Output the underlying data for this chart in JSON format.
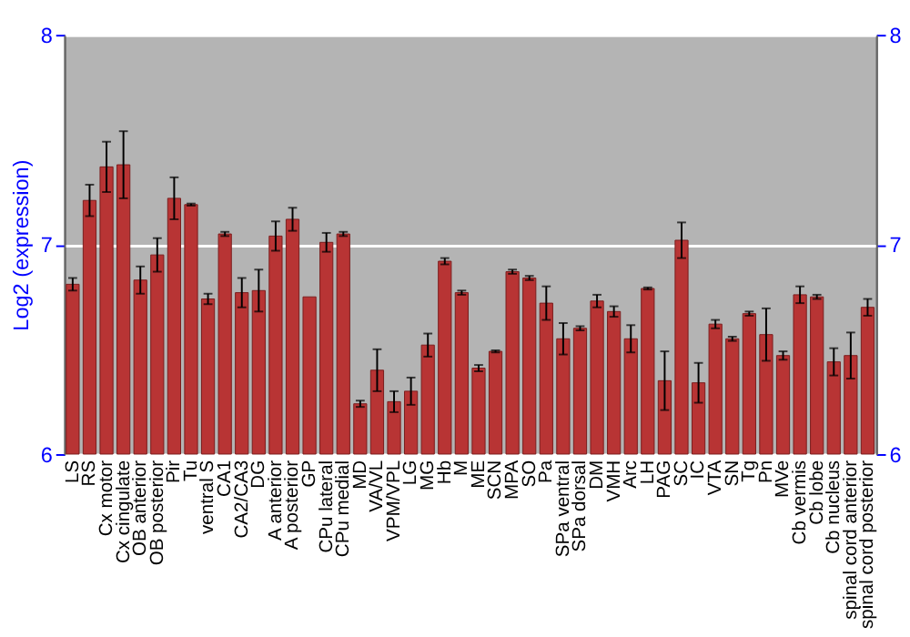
{
  "chart_data": {
    "type": "bar",
    "ylabel": "Log2 (expression)",
    "categories": [
      "LS",
      "RS",
      "Cx motor",
      "Cx cingulate",
      "OB anterior",
      "OB posterior",
      "Pir",
      "Tu",
      "ventral S",
      "CA1",
      "CA2/CA3",
      "DG",
      "A anterior",
      "A posterior",
      "GP",
      "CPu lateral",
      "CPu medial",
      "MD",
      "VA/VL",
      "VPM/VPL",
      "LG",
      "MG",
      "Hb",
      "M",
      "ME",
      "SCN",
      "MPA",
      "SO",
      "Pa",
      "SPa ventral",
      "SPa dorsal",
      "DM",
      "VMH",
      "Arc",
      "LH",
      "PAG",
      "SC",
      "IC",
      "VTA",
      "SN",
      "Tg",
      "Pn",
      "MVe",
      "Cb vermis",
      "Cb lobe",
      "Cb nucleus",
      "spinal cord anterior",
      "spinal cord posterior"
    ],
    "values": [
      6.81,
      7.21,
      7.37,
      7.38,
      6.83,
      6.95,
      7.22,
      7.19,
      6.74,
      7.05,
      6.77,
      6.78,
      7.04,
      7.12,
      6.75,
      7.01,
      7.05,
      6.24,
      6.4,
      6.25,
      6.3,
      6.52,
      6.92,
      6.77,
      6.41,
      6.49,
      6.87,
      6.84,
      6.72,
      6.55,
      6.6,
      6.73,
      6.68,
      6.55,
      6.79,
      6.35,
      7.02,
      6.34,
      6.62,
      6.55,
      6.67,
      6.57,
      6.47,
      6.76,
      6.75,
      6.44,
      6.47,
      6.7
    ],
    "errors": [
      0.03,
      0.075,
      0.12,
      0.16,
      0.065,
      0.08,
      0.1,
      0.005,
      0.025,
      0.01,
      0.07,
      0.1,
      0.07,
      0.055,
      null,
      0.045,
      0.01,
      0.015,
      0.1,
      0.05,
      0.065,
      0.055,
      0.015,
      0.01,
      0.015,
      0.005,
      0.01,
      0.01,
      0.08,
      0.075,
      0.01,
      0.03,
      0.025,
      0.065,
      0.005,
      0.14,
      0.085,
      0.095,
      0.02,
      0.01,
      0.01,
      0.125,
      0.02,
      0.04,
      0.01,
      0.065,
      0.11,
      0.04
    ],
    "color": "#b83434",
    "ylim": [
      6,
      8
    ],
    "yticks": [
      6,
      7,
      8
    ],
    "y2lim": [
      6,
      8
    ],
    "y2ticks": [
      6,
      7,
      8
    ],
    "grid": "y"
  }
}
